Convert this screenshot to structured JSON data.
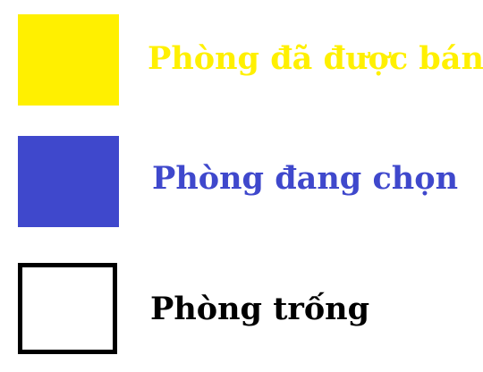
{
  "legend": {
    "items": [
      {
        "label": "Phòng đã được bán",
        "color": "#FFF000"
      },
      {
        "label": "Phòng đang chọn",
        "color": "#3F48CC"
      },
      {
        "label": "Phòng trống",
        "color": "#000000",
        "fill": "#FFFFFF"
      }
    ]
  }
}
